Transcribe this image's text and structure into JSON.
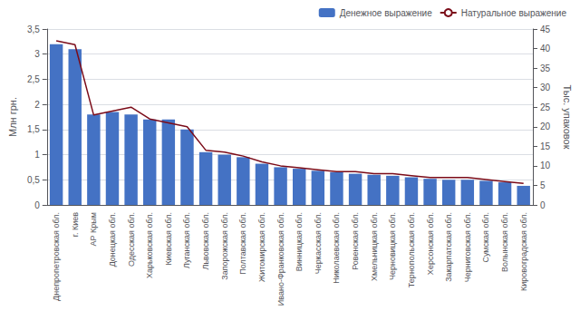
{
  "chart_data": {
    "type": "bar",
    "categories": [
      "Днепропетровская обл.",
      "г. Киев",
      "АР Крым",
      "Донецкая обл.",
      "Одесская обл.",
      "Харьковская обл.",
      "Киевская обл.",
      "Луганская обл.",
      "Львовская обл.",
      "Запорожская обл.",
      "Полтавская обл.",
      "Житомирская обл.",
      "Ивано-Франковская обл.",
      "Винницкая обл.",
      "Черкасская обл.",
      "Николаевская обл.",
      "Ровенская обл.",
      "Хмельницкая обл.",
      "Черновицкая обл.",
      "Тернопольская обл.",
      "Херсонская обл.",
      "Закарпатская обл.",
      "Черниговская обл.",
      "Сумская обл.",
      "Волынская обл.",
      "Кировоградская обл."
    ],
    "series": [
      {
        "name": "Денежное выражение",
        "type": "bar",
        "color": "#4472C4",
        "values": [
          3.2,
          3.1,
          1.8,
          1.85,
          1.8,
          1.7,
          1.7,
          1.5,
          1.05,
          1.0,
          0.95,
          0.82,
          0.75,
          0.72,
          0.68,
          0.65,
          0.62,
          0.6,
          0.58,
          0.55,
          0.52,
          0.5,
          0.5,
          0.48,
          0.45,
          0.38
        ]
      },
      {
        "name": "Натуральное выражение",
        "type": "line",
        "color": "#7B0C19",
        "axis": "y2",
        "values": [
          42,
          41,
          23,
          24,
          25,
          22,
          21,
          20,
          14,
          13.5,
          12.5,
          11,
          10,
          9.5,
          9,
          8.5,
          8.5,
          8,
          8,
          7.5,
          7,
          7,
          7,
          6.5,
          6,
          5.5
        ]
      }
    ],
    "ylabel": "Млн грн.",
    "y2label": "Тыс. упаковок",
    "ylim": [
      0,
      3.5
    ],
    "yticks": [
      0,
      {
        "value": 0.5,
        "label": "0,5"
      },
      1,
      {
        "value": 1.5,
        "label": "1,5"
      },
      2,
      {
        "value": 2.5,
        "label": "2,5"
      },
      3,
      {
        "value": 3.5,
        "label": "3,5"
      }
    ],
    "y2lim": [
      0,
      45
    ],
    "y2ticks": [
      0,
      5,
      10,
      15,
      20,
      25,
      30,
      35,
      40,
      45
    ],
    "grid": true,
    "legend": "upper right"
  }
}
